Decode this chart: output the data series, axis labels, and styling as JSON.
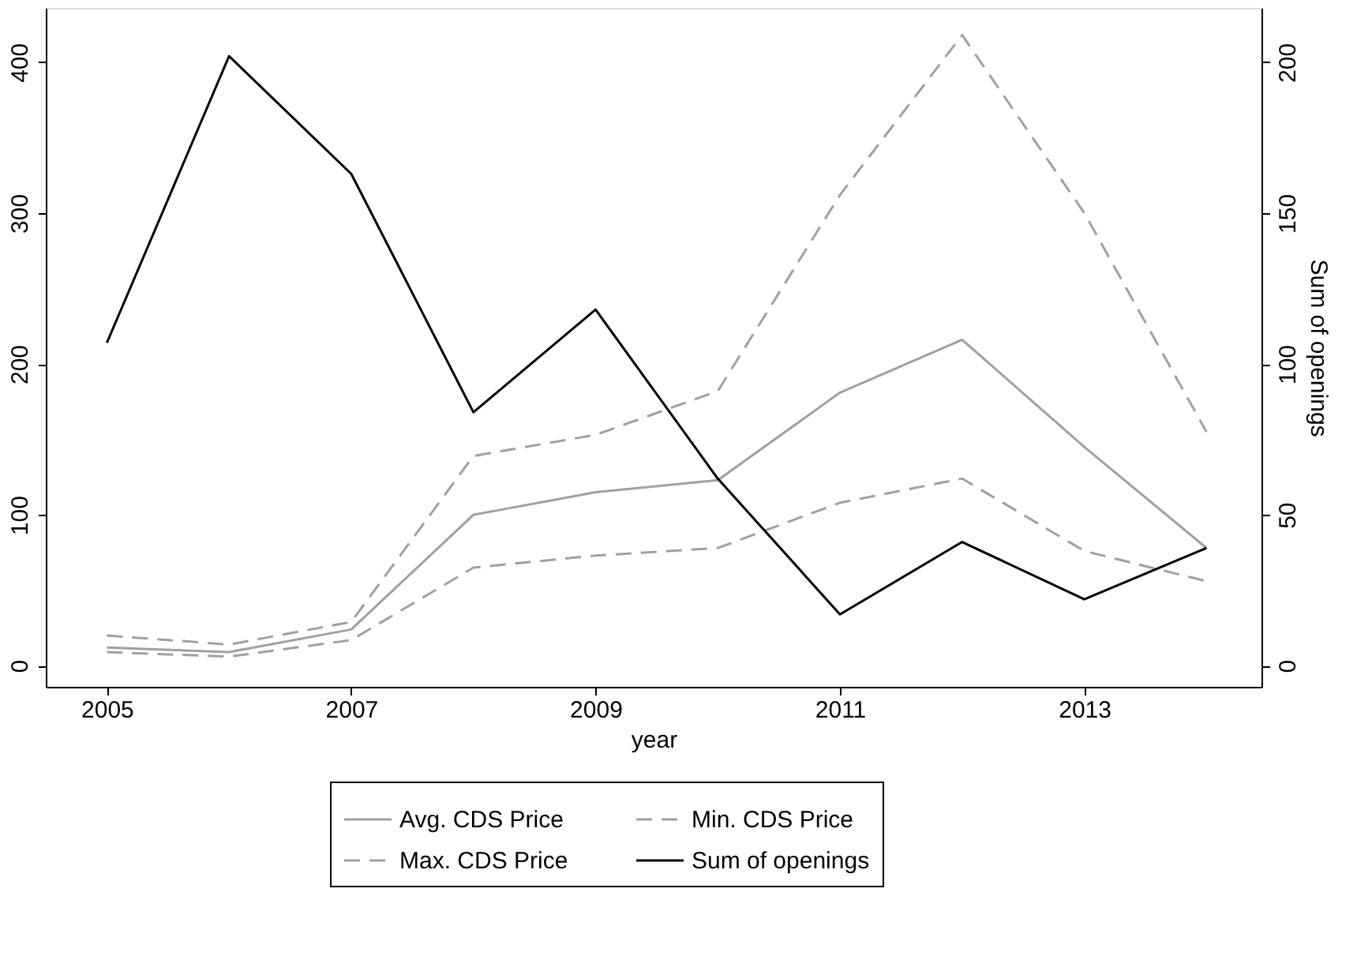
{
  "chart_data": {
    "type": "line",
    "xlabel": "year",
    "y2label": "Sum of openings",
    "x": [
      2005,
      2006,
      2007,
      2008,
      2009,
      2010,
      2011,
      2012,
      2013,
      2014
    ],
    "series": [
      {
        "name": "Avg. CDS Price",
        "color": "#a0a0a0",
        "line_style": "solid",
        "values": [
          12,
          9,
          24,
          100,
          115,
          123,
          181,
          216,
          145,
          78
        ]
      },
      {
        "name": "Min. CDS Price",
        "color": "#a0a0a0",
        "line_style": "dashed",
        "values": [
          9,
          6,
          17,
          65,
          73,
          78,
          108,
          124,
          76,
          56
        ]
      },
      {
        "name": "Max. CDS Price",
        "color": "#a0a0a0",
        "line_style": "dashed",
        "values": [
          20,
          14,
          29,
          139,
          153,
          182,
          312,
          418,
          300,
          155
        ]
      },
      {
        "name": "Sum of openings",
        "color": "#000000",
        "line_style": "solid",
        "axis": "y2",
        "values": [
          107,
          202,
          163,
          84,
          118,
          62,
          17,
          41,
          22,
          39
        ]
      }
    ],
    "xlim": [
      2004.5,
      2014.45
    ],
    "xticks": [
      2005,
      2007,
      2009,
      2011,
      2013
    ],
    "ylim": [
      -14,
      436
    ],
    "yticks": [
      0,
      100,
      200,
      300,
      400
    ],
    "y2lim": [
      -7,
      218
    ],
    "y2ticks": [
      0,
      50,
      100,
      150,
      200
    ],
    "grid": false,
    "legend": "bottom",
    "marker": "none"
  }
}
